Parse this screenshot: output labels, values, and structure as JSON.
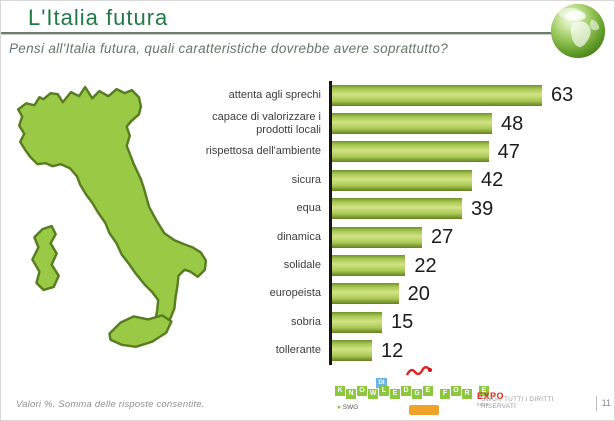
{
  "slide": {
    "title": "L'Italia futura",
    "question": "Pensi all'Italia futura, quali caratteristiche dovrebbe avere soprattutto?"
  },
  "chart_data": {
    "type": "bar",
    "orientation": "horizontal",
    "title": "",
    "categories": [
      "attenta agli sprechi",
      "capace di valorizzare i prodotti locali",
      "rispettosa dell'ambiente",
      "sicura",
      "equa",
      "dinamica",
      "solidale",
      "europeista",
      "sobria",
      "tollerante"
    ],
    "values": [
      63,
      48,
      47,
      42,
      39,
      27,
      22,
      20,
      15,
      12
    ],
    "unit": "%",
    "xlim": [
      0,
      66
    ],
    "grid": false,
    "legend": false,
    "data_labels": true,
    "bar_gradient": [
      "#70902c",
      "#d2e385",
      "#647f22"
    ]
  },
  "map": {
    "region": "Italia",
    "fill": "#9aca45",
    "stroke": "#567d1f"
  },
  "footer": {
    "note": "Valori %. Somma delle risposte consentite.",
    "logo": {
      "tiles_word1": [
        "K",
        "N",
        "O",
        "W",
        "L",
        "E",
        "D",
        "G",
        "E"
      ],
      "tiles_word2": [
        "F",
        "O",
        "R"
      ],
      "tiles_word3": [
        "E"
      ],
      "expo": "EXPO",
      "expo_year": "2015",
      "di": "DI",
      "swg": "SWG"
    },
    "copyright": "SWG® TUTTI I DIRITTI RISERVATI",
    "page_number": "11"
  },
  "colors": {
    "title_green": "#1f7a45",
    "axis": "#161616",
    "map_fill": "#9aca45",
    "map_stroke": "#567d1f",
    "bar_light": "#d2e385",
    "bar_dark": "#647f22"
  }
}
